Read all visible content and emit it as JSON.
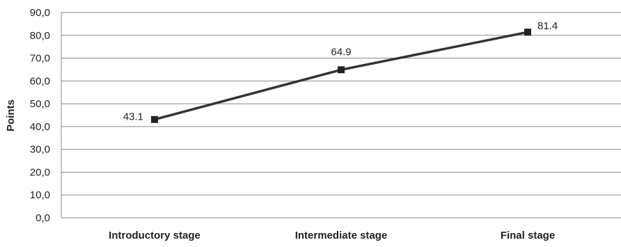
{
  "chart_data": {
    "type": "line",
    "title": "",
    "xlabel": "",
    "ylabel": "Points",
    "categories": [
      "Introductory stage",
      "Intermediate stage",
      "Final stage"
    ],
    "series": [
      {
        "values": [
          43.1,
          64.9,
          81.4
        ],
        "data_labels": [
          "43.1",
          "64.9",
          "81.4"
        ]
      }
    ],
    "ylim": [
      0,
      90
    ],
    "yticks": [
      "0,0",
      "10,0",
      "20,0",
      "30,0",
      "40,0",
      "50,0",
      "60,0",
      "70,0",
      "80,0",
      "90,0"
    ],
    "grid": true,
    "legend": "none",
    "line_color": "#333333",
    "marker": "square"
  }
}
